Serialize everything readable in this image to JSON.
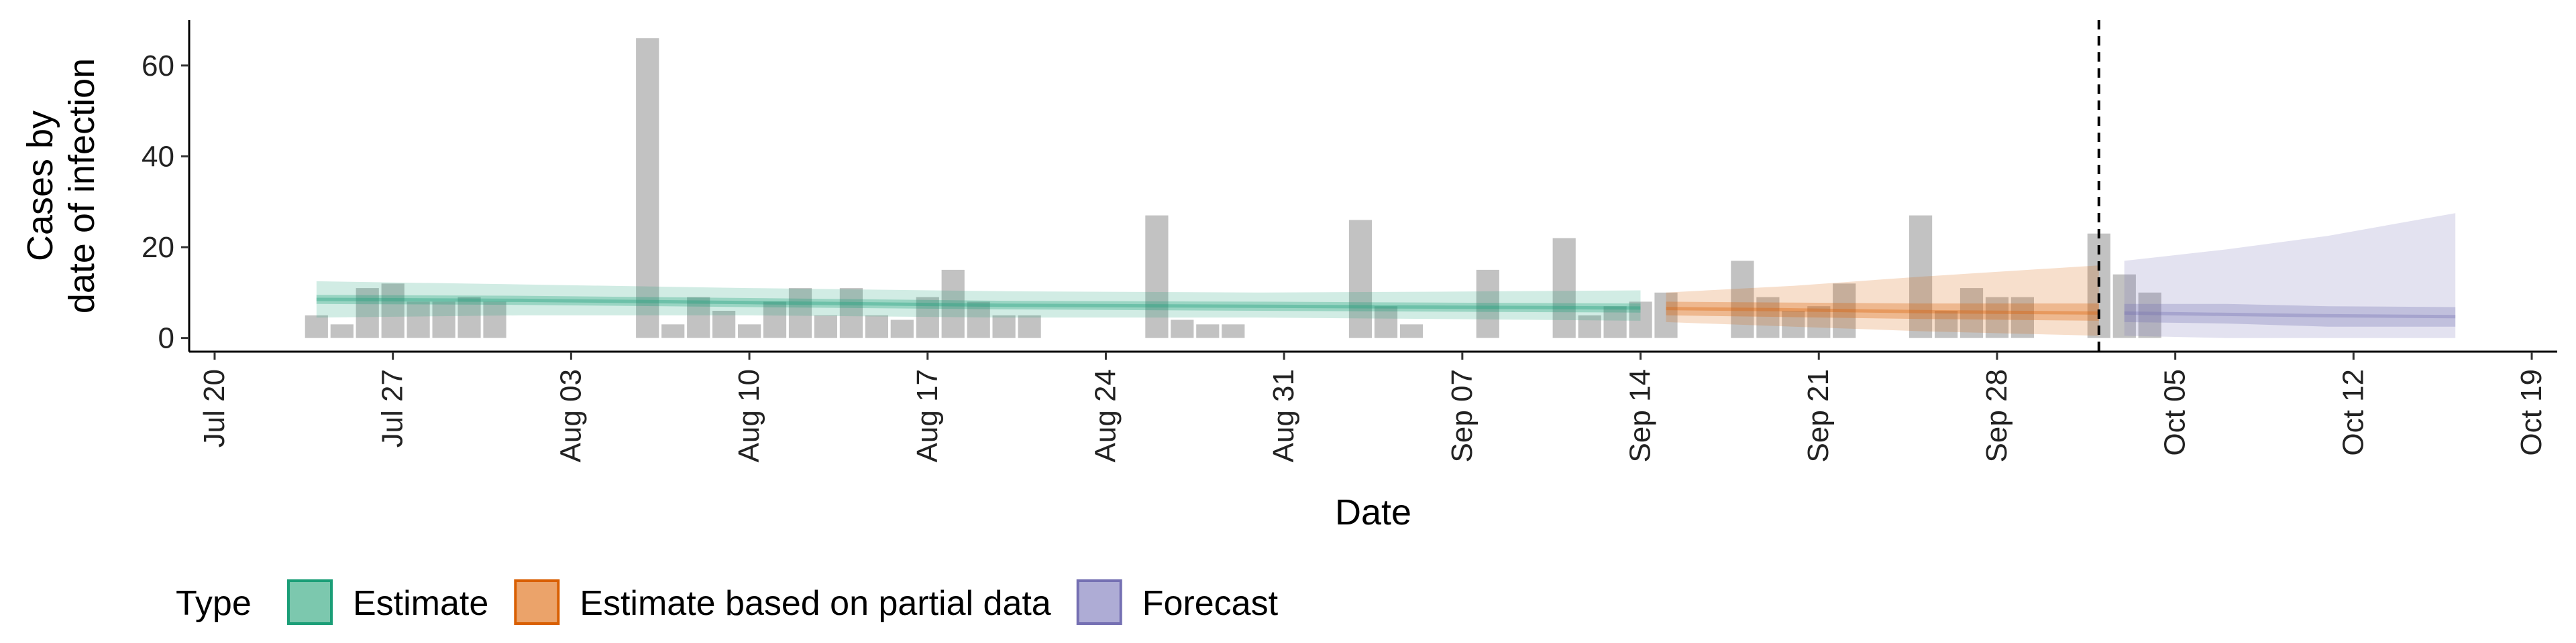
{
  "chart_data": {
    "type": "bar",
    "ylabel_lines": [
      "Cases by",
      "date of infection"
    ],
    "xlabel": "Date",
    "ylim": [
      -3,
      70
    ],
    "xlim": [
      "2020-07-19",
      "2020-10-20"
    ],
    "yticks": [
      0,
      20,
      40,
      60
    ],
    "xticks": [
      {
        "date": "2020-07-20",
        "label": "Jul 20"
      },
      {
        "date": "2020-07-27",
        "label": "Jul 27"
      },
      {
        "date": "2020-08-03",
        "label": "Aug 03"
      },
      {
        "date": "2020-08-10",
        "label": "Aug 10"
      },
      {
        "date": "2020-08-17",
        "label": "Aug 17"
      },
      {
        "date": "2020-08-24",
        "label": "Aug 24"
      },
      {
        "date": "2020-08-31",
        "label": "Aug 31"
      },
      {
        "date": "2020-09-07",
        "label": "Sep 07"
      },
      {
        "date": "2020-09-14",
        "label": "Sep 14"
      },
      {
        "date": "2020-09-21",
        "label": "Sep 21"
      },
      {
        "date": "2020-09-28",
        "label": "Sep 28"
      },
      {
        "date": "2020-10-05",
        "label": "Oct 05"
      },
      {
        "date": "2020-10-12",
        "label": "Oct 12"
      },
      {
        "date": "2020-10-19",
        "label": "Oct 19"
      }
    ],
    "bars": {
      "start_date": "2020-07-24",
      "values": [
        5,
        3,
        11,
        12,
        8,
        8,
        9,
        8,
        0,
        0,
        0,
        0,
        0,
        66,
        3,
        9,
        6,
        3,
        8,
        11,
        5,
        11,
        5,
        4,
        9,
        15,
        8,
        5,
        5,
        0,
        0,
        0,
        0,
        27,
        4,
        3,
        3,
        0,
        0,
        0,
        0,
        26,
        7,
        3,
        0,
        0,
        15,
        0,
        0,
        22,
        5,
        7,
        8,
        10,
        0,
        0,
        17,
        9,
        6,
        7,
        12,
        0,
        0,
        27,
        6,
        11,
        9,
        9,
        0,
        0,
        23,
        14,
        10
      ],
      "color": "#999999"
    },
    "vline_date": "2020-10-02",
    "series": [
      {
        "name": "Estimate",
        "color": "#1b9e77",
        "dates": [
          "2020-07-24",
          "2020-08-01",
          "2020-08-10",
          "2020-08-20",
          "2020-08-30",
          "2020-09-06",
          "2020-09-14"
        ],
        "median": [
          8.5,
          8.3,
          7.8,
          7.2,
          7.0,
          6.8,
          6.6
        ],
        "lower50": [
          7.5,
          7.3,
          6.8,
          6.3,
          6.0,
          5.8,
          5.6
        ],
        "upper50": [
          9.5,
          9.3,
          8.8,
          8.2,
          8.0,
          7.8,
          7.6
        ],
        "lower90": [
          4.5,
          5.0,
          5.0,
          4.5,
          4.5,
          4.2,
          3.8
        ],
        "upper90": [
          12.5,
          11.8,
          11.0,
          10.3,
          10.0,
          10.2,
          10.5
        ]
      },
      {
        "name": "Estimate based on partial data",
        "color": "#d95f02",
        "dates": [
          "2020-09-15",
          "2020-09-20",
          "2020-09-25",
          "2020-10-02"
        ],
        "median": [
          6.5,
          6.2,
          5.8,
          5.5
        ],
        "lower50": [
          5.0,
          4.6,
          4.2,
          3.8
        ],
        "upper50": [
          8.0,
          7.8,
          7.6,
          7.6
        ],
        "lower90": [
          3.5,
          2.5,
          1.5,
          0.5
        ],
        "upper90": [
          10.0,
          11.5,
          13.5,
          16.0
        ]
      },
      {
        "name": "Forecast",
        "color": "#7570b3",
        "dates": [
          "2020-10-03",
          "2020-10-07",
          "2020-10-11",
          "2020-10-16"
        ],
        "median": [
          5.5,
          5.2,
          4.9,
          4.7
        ],
        "lower50": [
          3.5,
          3.2,
          2.5,
          2.5
        ],
        "upper50": [
          7.5,
          7.5,
          7.0,
          6.8
        ],
        "lower90": [
          0.5,
          0,
          0,
          0
        ],
        "upper90": [
          17.0,
          19.5,
          22.5,
          27.5
        ]
      }
    ],
    "legend": {
      "title": "Type",
      "position": "bottom",
      "items": [
        {
          "label": "Estimate",
          "fill": "#7cc8ae",
          "stroke": "#1b9e77"
        },
        {
          "label": "Estimate based on partial data",
          "fill": "#eba36a",
          "stroke": "#d95f02"
        },
        {
          "label": "Forecast",
          "fill": "#aeacd5",
          "stroke": "#7570b3"
        }
      ]
    }
  }
}
